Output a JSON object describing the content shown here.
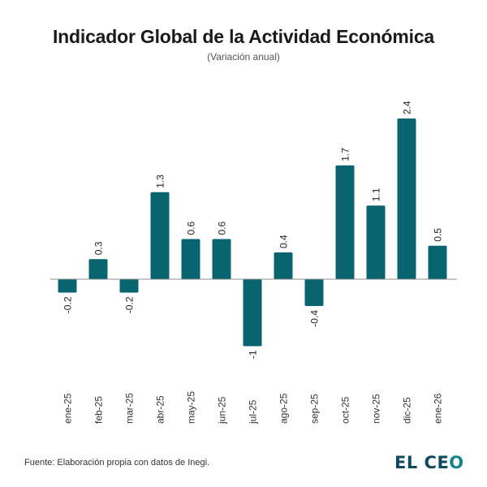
{
  "header": {
    "title": "Indicador Global de la Actividad Económica",
    "subtitle": "(Variación anual)"
  },
  "footer": {
    "source": "Fuente: Elaboración propia con datos de Inegi.",
    "logo_main": "EL CE",
    "logo_last": "O"
  },
  "colors": {
    "bar": "#08656f",
    "axis": "#888888",
    "text": "#222222"
  },
  "chart_data": {
    "type": "bar",
    "title": "Indicador Global de la Actividad Económica",
    "subtitle": "(Variación anual)",
    "xlabel": "",
    "ylabel": "",
    "categories": [
      "ene-25",
      "feb-25",
      "mar-25",
      "abr-25",
      "may-25",
      "jun-25",
      "jul-25",
      "ago-25",
      "sep-25",
      "oct-25",
      "nov-25",
      "dic-25",
      "ene-26"
    ],
    "values": [
      -0.2,
      0.3,
      -0.2,
      1.3,
      0.6,
      0.6,
      -1,
      0.4,
      -0.4,
      1.7,
      1.1,
      2.4,
      0.5
    ],
    "data_labels": [
      "-0.2",
      "0.3",
      "-0.2",
      "1.3",
      "0.6",
      "0.6",
      "-1",
      "0.4",
      "-0.4",
      "1.7",
      "1.1",
      "2.4",
      "0.5"
    ],
    "ylim": [
      -1.4,
      2.7
    ],
    "grid": false,
    "legend": "none"
  }
}
